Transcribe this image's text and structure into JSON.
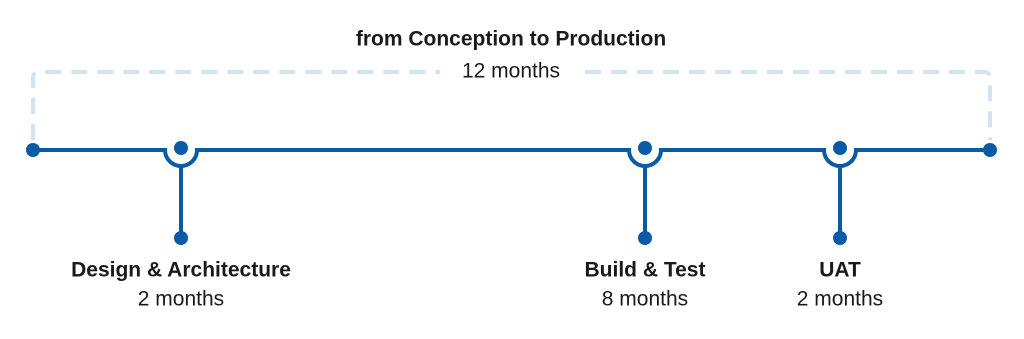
{
  "header": {
    "title": "from Conception to Production",
    "duration": "12 months"
  },
  "phases": [
    {
      "label": "Design & Architecture",
      "duration": "2 months"
    },
    {
      "label": "Build & Test",
      "duration": "8 months"
    },
    {
      "label": "UAT",
      "duration": "2 months"
    }
  ]
}
